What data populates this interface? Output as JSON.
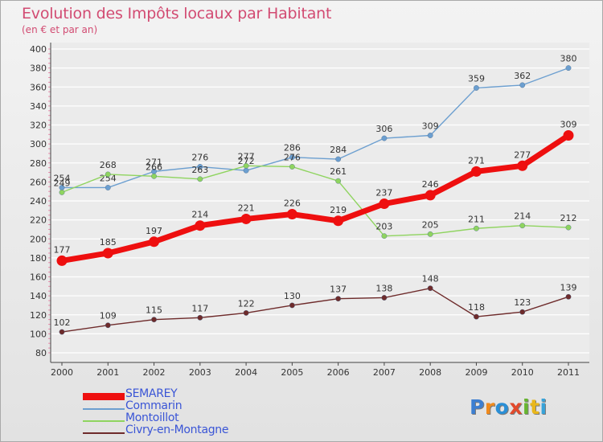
{
  "title": "Evolution des Impôts locaux par Habitant",
  "subtitle": "(en € et par an)",
  "logo": {
    "letters": [
      "P",
      "r",
      "o",
      "x",
      "i",
      "t",
      "i"
    ],
    "colors": [
      "#3d7fd1",
      "#f08a1c",
      "#2a8fd6",
      "#e24a2c",
      "#67b52f",
      "#e9b71b",
      "#38a3d9"
    ]
  },
  "chart_data": {
    "type": "line",
    "title": "Evolution des Impôts locaux par Habitant",
    "subtitle": "(en € et par an)",
    "x": [
      "2000",
      "2001",
      "2002",
      "2003",
      "2004",
      "2005",
      "2006",
      "2007",
      "2008",
      "2009",
      "2010",
      "2011"
    ],
    "ylim": [
      80,
      400
    ],
    "yticks": [
      "80",
      "100",
      "120",
      "140",
      "160",
      "180",
      "200",
      "220",
      "240",
      "260",
      "280",
      "300",
      "320",
      "340",
      "360",
      "380",
      "400"
    ],
    "grid": true,
    "legend_position": "bottom-left",
    "series": [
      {
        "name": "Commarin",
        "color": "#6c9fd0",
        "values": [
          254,
          254,
          271,
          276,
          272,
          286,
          284,
          306,
          309,
          359,
          362,
          380
        ],
        "labels": [
          "254",
          "254",
          "271",
          "276",
          "272",
          "286",
          "284",
          "306",
          "309",
          "359",
          "362",
          "380"
        ]
      },
      {
        "name": "Montoillot",
        "color": "#8fd45f",
        "values": [
          249,
          268,
          266,
          263,
          277,
          276,
          261,
          203,
          205,
          211,
          214,
          212
        ],
        "labels": [
          "249",
          "268",
          "266",
          "263",
          "277",
          "276",
          "261",
          "203",
          "205",
          "211",
          "214",
          "212"
        ]
      },
      {
        "name": "Civry-en-Montagne",
        "color": "#6e2b2b",
        "values": [
          102,
          109,
          115,
          117,
          122,
          130,
          137,
          138,
          148,
          118,
          123,
          139
        ],
        "labels": [
          "102",
          "109",
          "115",
          "117",
          "122",
          "130",
          "137",
          "138",
          "148",
          "118",
          "123",
          "139"
        ]
      },
      {
        "name": "SEMAREY",
        "color": "#ee0f0f",
        "values": [
          177,
          185,
          197,
          214,
          221,
          226,
          219,
          237,
          246,
          271,
          277,
          309
        ],
        "labels": [
          "177",
          "185",
          "197",
          "214",
          "221",
          "226",
          "219",
          "237",
          "246",
          "271",
          "277",
          "309"
        ]
      }
    ],
    "legend_order": [
      "SEMAREY",
      "Commarin",
      "Montoillot",
      "Civry-en-Montagne"
    ]
  }
}
